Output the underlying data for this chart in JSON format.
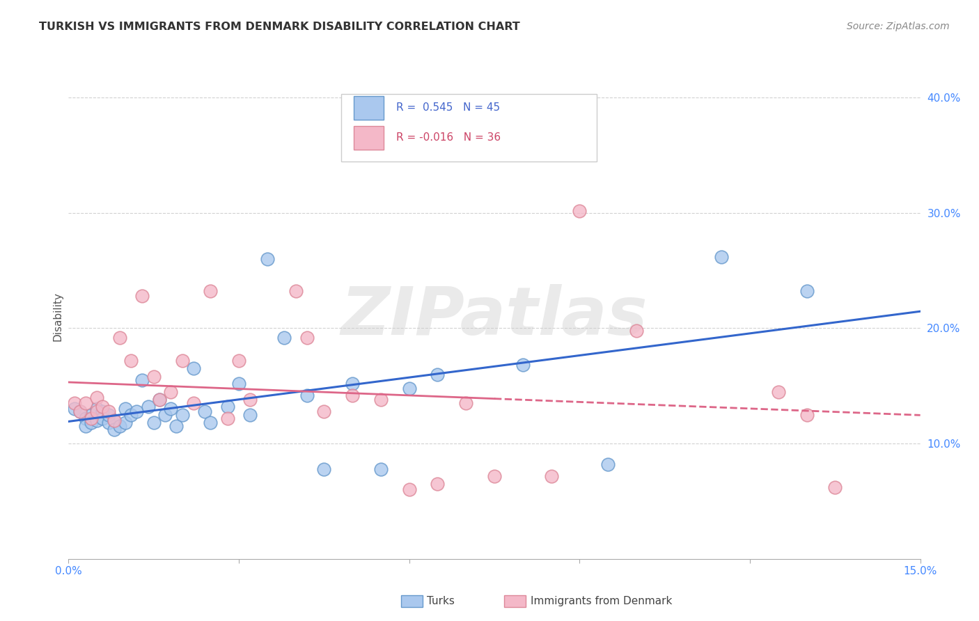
{
  "title": "TURKISH VS IMMIGRANTS FROM DENMARK DISABILITY CORRELATION CHART",
  "source": "Source: ZipAtlas.com",
  "ylabel": "Disability",
  "xlim": [
    0.0,
    0.15
  ],
  "ylim": [
    0.0,
    0.42
  ],
  "xticks": [
    0.0,
    0.03,
    0.06,
    0.09,
    0.12,
    0.15
  ],
  "yticks_right": [
    0.1,
    0.2,
    0.3,
    0.4
  ],
  "ytick_labels_right": [
    "10.0%",
    "20.0%",
    "30.0%",
    "40.0%"
  ],
  "background_color": "#ffffff",
  "grid_color": "#cccccc",
  "watermark": "ZIPatlas",
  "legend_R_blue": "0.545",
  "legend_N_blue": "45",
  "legend_R_pink": "-0.016",
  "legend_N_pink": "36",
  "turks_color": "#aac8ee",
  "turks_edge_color": "#6699cc",
  "denmark_color": "#f4b8c8",
  "denmark_edge_color": "#dd8899",
  "blue_line_color": "#3366cc",
  "pink_line_color": "#dd6688",
  "axis_color": "#aaaaaa",
  "tick_label_color": "#4488ff",
  "title_color": "#333333",
  "source_color": "#888888",
  "ylabel_color": "#555555",
  "legend_text_color_blue": "#4466cc",
  "legend_text_color_pink": "#cc4466",
  "bottom_legend_color": "#444444",
  "turks_x": [
    0.001,
    0.002,
    0.003,
    0.003,
    0.004,
    0.004,
    0.005,
    0.005,
    0.006,
    0.006,
    0.007,
    0.007,
    0.008,
    0.008,
    0.009,
    0.01,
    0.01,
    0.011,
    0.012,
    0.013,
    0.014,
    0.015,
    0.016,
    0.017,
    0.018,
    0.019,
    0.02,
    0.022,
    0.024,
    0.025,
    0.028,
    0.03,
    0.032,
    0.035,
    0.038,
    0.042,
    0.045,
    0.05,
    0.055,
    0.06,
    0.065,
    0.08,
    0.095,
    0.115,
    0.13
  ],
  "turks_y": [
    0.13,
    0.128,
    0.122,
    0.115,
    0.125,
    0.118,
    0.13,
    0.12,
    0.128,
    0.122,
    0.118,
    0.125,
    0.12,
    0.112,
    0.115,
    0.13,
    0.118,
    0.125,
    0.128,
    0.155,
    0.132,
    0.118,
    0.138,
    0.125,
    0.13,
    0.115,
    0.125,
    0.165,
    0.128,
    0.118,
    0.132,
    0.152,
    0.125,
    0.26,
    0.192,
    0.142,
    0.078,
    0.152,
    0.078,
    0.148,
    0.16,
    0.168,
    0.082,
    0.262,
    0.232
  ],
  "denmark_x": [
    0.001,
    0.002,
    0.003,
    0.004,
    0.005,
    0.005,
    0.006,
    0.007,
    0.008,
    0.009,
    0.011,
    0.013,
    0.015,
    0.016,
    0.018,
    0.02,
    0.022,
    0.025,
    0.028,
    0.03,
    0.032,
    0.04,
    0.042,
    0.045,
    0.05,
    0.055,
    0.06,
    0.065,
    0.07,
    0.075,
    0.085,
    0.09,
    0.1,
    0.125,
    0.13,
    0.135
  ],
  "denmark_y": [
    0.135,
    0.128,
    0.135,
    0.122,
    0.128,
    0.14,
    0.132,
    0.128,
    0.12,
    0.192,
    0.172,
    0.228,
    0.158,
    0.138,
    0.145,
    0.172,
    0.135,
    0.232,
    0.122,
    0.172,
    0.138,
    0.232,
    0.192,
    0.128,
    0.142,
    0.138,
    0.06,
    0.065,
    0.135,
    0.072,
    0.072,
    0.302,
    0.198,
    0.145,
    0.125,
    0.062
  ]
}
